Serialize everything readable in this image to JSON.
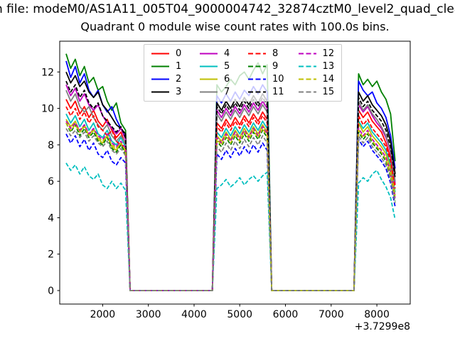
{
  "figure": {
    "suptitle": "n file: modeM0/AS1A11_005T04_9000004742_32874cztM0_level2_quad_clean"
  },
  "chart_data": {
    "type": "line",
    "title": "Quadrant 0 module wise count rates with 100.0s bins.",
    "xlabel": "",
    "ylabel": "",
    "x_axis_offset": "+3.7299e8",
    "xticks": [
      2000,
      3000,
      4000,
      5000,
      6000,
      7000,
      8000
    ],
    "yticks": [
      0,
      2,
      4,
      6,
      8,
      10,
      12
    ],
    "xlim": [
      1060,
      8730
    ],
    "ylim": [
      -0.74,
      13.69
    ],
    "grid": false,
    "legend_position": "upper center",
    "legend_columns": 4,
    "x": [
      1200,
      1300,
      1400,
      1500,
      1600,
      1700,
      1800,
      1900,
      2000,
      2100,
      2200,
      2300,
      2400,
      2500,
      2600,
      4400,
      4500,
      4600,
      4700,
      4800,
      4900,
      5000,
      5100,
      5200,
      5300,
      5400,
      5500,
      5600,
      5700,
      7500,
      7600,
      7700,
      7800,
      7900,
      8000,
      8100,
      8200,
      8300,
      8400
    ],
    "series": [
      {
        "name": "0",
        "color": "#ff0000",
        "linestyle": "solid",
        "values": [
          10.5,
          10.0,
          10.4,
          9.7,
          10.1,
          9.5,
          9.9,
          9.3,
          9.0,
          9.4,
          8.8,
          8.4,
          8.7,
          8.0,
          0,
          0,
          9.2,
          8.9,
          9.4,
          9.0,
          9.5,
          9.1,
          9.6,
          9.2,
          9.7,
          9.3,
          9.8,
          9.4,
          0,
          0,
          9.9,
          9.5,
          9.8,
          9.3,
          9.0,
          8.7,
          8.1,
          7.3,
          5.8
        ]
      },
      {
        "name": "1",
        "color": "#008000",
        "linestyle": "solid",
        "values": [
          13.0,
          12.2,
          12.7,
          11.8,
          12.3,
          11.4,
          11.7,
          11.0,
          11.2,
          10.4,
          9.9,
          10.3,
          9.2,
          8.8,
          0,
          0,
          11.3,
          10.9,
          11.2,
          11.6,
          11.3,
          11.8,
          12.0,
          11.6,
          12.1,
          12.5,
          11.9,
          12.4,
          0,
          0,
          11.9,
          11.3,
          11.6,
          11.2,
          11.5,
          10.9,
          10.5,
          9.7,
          7.1
        ]
      },
      {
        "name": "2",
        "color": "#0000ff",
        "linestyle": "solid",
        "values": [
          12.6,
          11.7,
          12.3,
          11.4,
          11.9,
          11.0,
          10.6,
          11.0,
          10.2,
          9.8,
          10.1,
          9.4,
          8.9,
          8.4,
          0,
          0,
          10.7,
          10.3,
          10.8,
          10.4,
          10.9,
          10.5,
          11.0,
          10.7,
          11.2,
          10.8,
          11.3,
          10.9,
          0,
          0,
          11.5,
          11.0,
          10.7,
          10.9,
          10.3,
          10.0,
          9.5,
          8.5,
          6.7
        ]
      },
      {
        "name": "3",
        "color": "#000000",
        "linestyle": "solid",
        "values": [
          12.0,
          11.4,
          11.8,
          11.2,
          11.5,
          10.9,
          10.6,
          10.9,
          10.2,
          9.9,
          9.5,
          9.1,
          8.9,
          8.6,
          0,
          0,
          10.3,
          9.9,
          10.4,
          10.0,
          10.5,
          10.1,
          10.6,
          10.2,
          10.7,
          10.3,
          10.8,
          10.4,
          0,
          0,
          10.9,
          10.4,
          10.7,
          10.2,
          9.9,
          9.6,
          9.1,
          8.2,
          6.4
        ]
      },
      {
        "name": "4",
        "color": "#bf00bf",
        "linestyle": "solid",
        "values": [
          11.3,
          10.7,
          11.1,
          10.4,
          10.8,
          10.2,
          9.9,
          10.2,
          9.6,
          9.2,
          8.9,
          8.6,
          8.9,
          8.3,
          0,
          0,
          9.9,
          9.5,
          10.0,
          9.6,
          10.1,
          9.7,
          10.2,
          9.8,
          10.3,
          9.9,
          10.4,
          10.0,
          0,
          0,
          10.2,
          9.8,
          10.1,
          9.6,
          9.2,
          8.9,
          8.4,
          7.6,
          5.9
        ]
      },
      {
        "name": "5",
        "color": "#00bfbf",
        "linestyle": "solid",
        "values": [
          9.7,
          9.2,
          9.6,
          9.0,
          9.4,
          8.8,
          9.2,
          8.6,
          8.4,
          8.8,
          8.2,
          8.0,
          8.4,
          7.9,
          0,
          0,
          8.7,
          8.4,
          8.9,
          8.5,
          9.0,
          8.6,
          9.1,
          8.7,
          9.2,
          8.8,
          9.3,
          8.9,
          0,
          0,
          9.3,
          8.9,
          9.2,
          8.7,
          8.4,
          8.1,
          7.7,
          6.9,
          5.4
        ]
      },
      {
        "name": "6",
        "color": "#bfbf00",
        "linestyle": "solid",
        "values": [
          9.4,
          9.0,
          9.3,
          8.7,
          9.1,
          8.5,
          8.9,
          8.3,
          8.1,
          8.5,
          7.9,
          7.7,
          8.1,
          7.6,
          0,
          0,
          8.5,
          8.2,
          8.7,
          8.3,
          8.8,
          8.4,
          8.9,
          8.5,
          9.0,
          8.6,
          9.1,
          8.7,
          0,
          0,
          9.2,
          8.7,
          9.0,
          8.5,
          8.2,
          7.9,
          7.5,
          6.7,
          5.2
        ]
      },
      {
        "name": "7",
        "color": "#808080",
        "linestyle": "solid",
        "values": [
          11.0,
          10.4,
          10.8,
          10.1,
          9.8,
          10.1,
          9.5,
          9.1,
          8.8,
          9.1,
          8.5,
          8.2,
          8.5,
          8.1,
          0,
          0,
          9.7,
          9.3,
          9.8,
          9.4,
          9.9,
          9.5,
          10.0,
          9.6,
          10.1,
          9.7,
          10.2,
          9.8,
          0,
          0,
          10.4,
          9.9,
          10.2,
          9.7,
          9.4,
          9.0,
          8.5,
          7.7,
          6.0
        ]
      },
      {
        "name": "8",
        "color": "#ff0000",
        "linestyle": "dashed",
        "values": [
          10.1,
          9.6,
          10.0,
          9.4,
          9.8,
          9.2,
          9.6,
          9.0,
          8.8,
          8.5,
          8.8,
          8.2,
          8.0,
          7.9,
          0,
          0,
          9.0,
          8.7,
          9.2,
          8.8,
          9.3,
          8.9,
          9.4,
          9.0,
          9.5,
          9.1,
          9.6,
          9.2,
          0,
          0,
          9.6,
          9.1,
          9.4,
          8.9,
          8.6,
          8.3,
          7.9,
          7.1,
          5.6
        ]
      },
      {
        "name": "9",
        "color": "#008000",
        "linestyle": "dashed",
        "values": [
          9.2,
          8.7,
          9.1,
          8.5,
          8.9,
          8.4,
          8.7,
          8.2,
          8.0,
          8.4,
          7.8,
          7.6,
          8.0,
          7.5,
          0,
          0,
          8.2,
          7.9,
          8.4,
          8.0,
          8.5,
          8.1,
          8.6,
          8.2,
          8.7,
          8.3,
          8.8,
          8.4,
          0,
          0,
          8.7,
          8.3,
          8.6,
          8.1,
          7.8,
          7.5,
          7.1,
          6.3,
          4.9
        ]
      },
      {
        "name": "10",
        "color": "#0000ff",
        "linestyle": "dashed",
        "values": [
          8.6,
          8.1,
          8.5,
          7.9,
          8.3,
          7.7,
          8.1,
          7.5,
          7.3,
          7.7,
          7.1,
          6.9,
          7.3,
          7.0,
          0,
          0,
          7.5,
          7.2,
          7.7,
          7.3,
          7.8,
          7.4,
          7.9,
          7.5,
          8.0,
          7.6,
          8.1,
          7.7,
          0,
          0,
          8.3,
          7.9,
          8.2,
          7.7,
          7.4,
          7.1,
          6.7,
          5.9,
          4.6
        ]
      },
      {
        "name": "11",
        "color": "#000000",
        "linestyle": "dashed",
        "values": [
          11.5,
          10.9,
          11.3,
          10.6,
          11.0,
          10.3,
          10.0,
          10.3,
          9.6,
          9.3,
          9.0,
          8.7,
          9.0,
          8.4,
          0,
          0,
          10.1,
          9.7,
          10.2,
          9.8,
          10.3,
          9.9,
          10.4,
          10.0,
          10.5,
          10.1,
          10.6,
          10.2,
          0,
          0,
          10.6,
          10.1,
          10.4,
          9.9,
          9.6,
          9.3,
          8.8,
          7.9,
          6.2
        ]
      },
      {
        "name": "12",
        "color": "#bf00bf",
        "linestyle": "dashed",
        "values": [
          9.3,
          8.9,
          9.2,
          8.8,
          9.1,
          8.6,
          8.9,
          8.5,
          8.3,
          8.6,
          8.1,
          7.9,
          8.2,
          7.8,
          0,
          0,
          8.4,
          8.1,
          8.6,
          8.2,
          8.7,
          8.3,
          8.8,
          8.4,
          8.9,
          8.5,
          9.0,
          8.6,
          0,
          0,
          8.9,
          8.5,
          8.8,
          8.3,
          8.0,
          7.7,
          7.3,
          6.5,
          5.1
        ]
      },
      {
        "name": "13",
        "color": "#00bfbf",
        "linestyle": "dashed",
        "values": [
          7.0,
          6.6,
          6.9,
          6.4,
          6.8,
          6.3,
          6.1,
          6.4,
          5.8,
          5.6,
          6.0,
          5.6,
          5.9,
          5.5,
          0,
          0,
          5.6,
          5.8,
          6.1,
          5.7,
          5.9,
          6.2,
          5.8,
          6.1,
          6.3,
          6.0,
          6.3,
          6.5,
          0,
          0,
          5.9,
          6.2,
          6.0,
          6.4,
          6.6,
          6.1,
          5.7,
          5.1,
          3.9
        ]
      },
      {
        "name": "14",
        "color": "#bfbf00",
        "linestyle": "dashed",
        "values": [
          9.2,
          8.8,
          9.1,
          8.7,
          9.0,
          8.5,
          8.8,
          8.4,
          8.2,
          8.5,
          8.0,
          7.8,
          8.1,
          7.7,
          0,
          0,
          8.3,
          8.0,
          8.5,
          8.1,
          8.6,
          8.2,
          8.7,
          8.3,
          8.8,
          8.4,
          8.9,
          8.5,
          0,
          0,
          8.8,
          8.4,
          8.7,
          8.2,
          7.9,
          7.6,
          7.2,
          6.4,
          5.2
        ]
      },
      {
        "name": "15",
        "color": "#808080",
        "linestyle": "dashed",
        "values": [
          8.9,
          8.5,
          8.8,
          8.4,
          8.7,
          8.2,
          8.5,
          8.1,
          7.9,
          8.2,
          7.7,
          7.5,
          7.8,
          7.4,
          0,
          0,
          7.9,
          7.6,
          8.1,
          7.7,
          8.2,
          7.8,
          8.3,
          7.9,
          8.4,
          8.0,
          8.5,
          8.1,
          0,
          0,
          8.5,
          8.1,
          8.4,
          7.9,
          7.6,
          7.3,
          6.9,
          6.1,
          4.8
        ]
      }
    ]
  }
}
